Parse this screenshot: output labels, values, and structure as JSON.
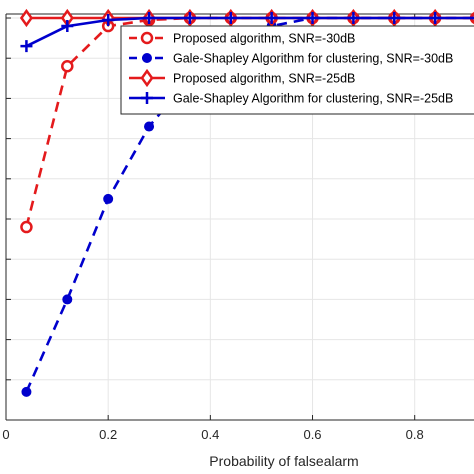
{
  "chart_data": {
    "type": "line",
    "title": "",
    "xlabel": "Probability of falsealarm",
    "ylabel": "",
    "xlim": [
      0,
      0.92
    ],
    "ylim": [
      0.0,
      1.01
    ],
    "grid": true,
    "legend_position": "top-right",
    "x_ticks": [
      0,
      0.2,
      0.4,
      0.6,
      0.8
    ],
    "x_tick_labels": [
      "0",
      "0.2",
      "0.4",
      "0.6",
      "0.8"
    ],
    "series": [
      {
        "name": "Proposed algorithm, SNR=-30dB",
        "color": "#e41a1c",
        "line": "dashed",
        "marker": "open-circle",
        "x": [
          0.04,
          0.12,
          0.2,
          0.28,
          0.36,
          0.44,
          0.52,
          0.6,
          0.68,
          0.76,
          0.84,
          0.92
        ],
        "y": [
          0.48,
          0.88,
          0.98,
          0.995,
          1.0,
          1.0,
          1.0,
          1.0,
          1.0,
          1.0,
          1.0,
          1.0
        ]
      },
      {
        "name": "Gale-Shapley Algorithm for clustering, SNR=-30dB",
        "color": "#0000cd",
        "line": "dashed",
        "marker": "filled-circle",
        "x": [
          0.04,
          0.12,
          0.2,
          0.28,
          0.36,
          0.44,
          0.52,
          0.6,
          0.68,
          0.76,
          0.84,
          0.92
        ],
        "y": [
          0.07,
          0.3,
          0.55,
          0.73,
          0.85,
          0.93,
          0.98,
          1.0,
          1.0,
          1.0,
          1.0,
          1.0
        ]
      },
      {
        "name": "Proposed algorithm, SNR=-25dB",
        "color": "#e41a1c",
        "line": "solid",
        "marker": "diamond",
        "x": [
          0.04,
          0.12,
          0.2,
          0.28,
          0.36,
          0.44,
          0.52,
          0.6,
          0.68,
          0.76,
          0.84,
          0.92
        ],
        "y": [
          1.0,
          1.0,
          1.0,
          1.0,
          1.0,
          1.0,
          1.0,
          1.0,
          1.0,
          1.0,
          1.0,
          1.0
        ]
      },
      {
        "name": "Gale-Shapley Algorithm for clustering, SNR=-25dB",
        "color": "#0000cd",
        "line": "solid",
        "marker": "plus",
        "x": [
          0.04,
          0.12,
          0.2,
          0.28,
          0.36,
          0.44,
          0.52,
          0.6,
          0.68,
          0.76,
          0.84,
          0.92
        ],
        "y": [
          0.93,
          0.98,
          0.995,
          1.0,
          1.0,
          1.0,
          1.0,
          1.0,
          1.0,
          1.0,
          1.0,
          1.0
        ]
      }
    ]
  }
}
